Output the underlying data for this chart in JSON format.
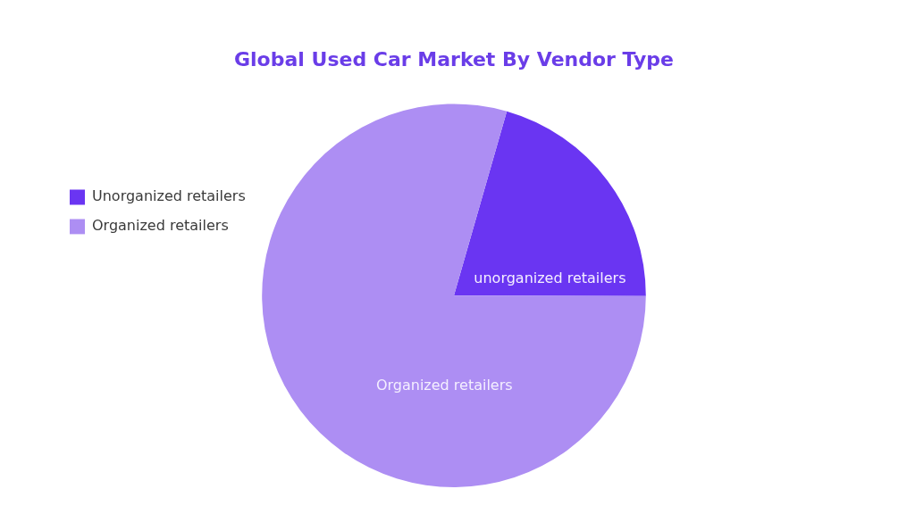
{
  "chart_data": {
    "type": "pie",
    "title": "Global Used Car Market By Vendor Type",
    "categories": [
      "Unorganized retailers",
      "Organized retailers"
    ],
    "values": [
      20.6,
      79.4
    ],
    "colors": [
      "#6a35f2",
      "#ad8ef3"
    ],
    "value_labels": [
      "unorganized retailers",
      "Organized retailers"
    ],
    "legend": "left"
  }
}
